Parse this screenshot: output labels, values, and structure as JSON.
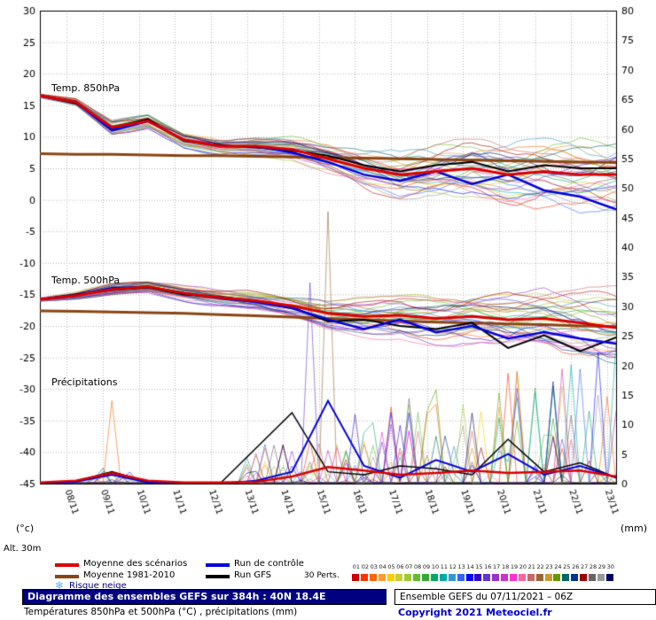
{
  "colors": {
    "mean": "#dd0000",
    "climo": "#8b4513",
    "control": "#0000dd",
    "gfs": "#000000",
    "grid": "#b8b8b8",
    "frame": "#000000",
    "navy": "#000080",
    "copyright_blue": "#0000cc",
    "snow": "#5ab4e5"
  },
  "chart_data": {
    "type": "line",
    "title": "Diagramme des ensembles GEFS sur 384h : 40N 18.4E",
    "panel_labels": {
      "t850": "Temp. 850hPa",
      "t500": "Temp. 500hPa",
      "precip": "Précipitations"
    },
    "x": {
      "days": 16,
      "first_tick_day": 0.75,
      "tick_labels": [
        "08/11",
        "09/11",
        "10/11",
        "11/11",
        "12/11",
        "13/11",
        "14/11",
        "15/11",
        "16/11",
        "17/11",
        "18/11",
        "19/11",
        "20/11",
        "21/11",
        "22/11",
        "23/11"
      ]
    },
    "y_left": {
      "label": "(°c)",
      "min": -45,
      "max": 30,
      "step": 5
    },
    "y_right": {
      "label": "(mm)",
      "min": 0,
      "max": 80,
      "step": 5
    },
    "alt_label": "Alt. 30m",
    "series": {
      "t850": {
        "mean": [
          16.5,
          15.5,
          11.5,
          12.5,
          9.5,
          8.5,
          8.5,
          8.0,
          6.5,
          5.0,
          4.0,
          4.5,
          5.0,
          4.0,
          4.5,
          4.0,
          4.0
        ],
        "climo": [
          7.3,
          7.2,
          7.2,
          7.1,
          7.0,
          7.0,
          6.9,
          6.8,
          6.7,
          6.6,
          6.5,
          6.4,
          6.3,
          6.2,
          6.1,
          6.0,
          5.9
        ],
        "control": [
          16.5,
          15.5,
          11.0,
          12.5,
          9.5,
          8.5,
          8.5,
          7.5,
          6.0,
          4.0,
          3.0,
          4.5,
          2.5,
          4.0,
          1.5,
          0.5,
          -1.5
        ],
        "gfs": [
          16.5,
          15.3,
          11.5,
          12.8,
          9.3,
          8.7,
          8.3,
          7.8,
          7.0,
          5.5,
          4.5,
          5.5,
          6.0,
          4.5,
          5.5,
          5.0,
          5.0
        ]
      },
      "t500": {
        "mean": [
          -15.8,
          -15.2,
          -14.2,
          -13.8,
          -14.8,
          -15.5,
          -16.0,
          -16.8,
          -18.0,
          -18.5,
          -18.3,
          -18.8,
          -18.5,
          -19.0,
          -18.8,
          -19.5,
          -20.3
        ],
        "climo": [
          -17.6,
          -17.7,
          -17.8,
          -17.9,
          -18.0,
          -18.2,
          -18.4,
          -18.6,
          -18.8,
          -19.0,
          -19.2,
          -19.4,
          -19.5,
          -19.7,
          -19.8,
          -20.0,
          -20.1
        ],
        "control": [
          -15.8,
          -15.2,
          -14.0,
          -13.8,
          -14.8,
          -15.6,
          -16.2,
          -17.2,
          -19.0,
          -20.5,
          -19.0,
          -21.0,
          -20.0,
          -22.0,
          -21.0,
          -22.0,
          -22.8
        ],
        "gfs": [
          -15.8,
          -15.0,
          -14.3,
          -13.9,
          -15.0,
          -15.4,
          -16.0,
          -17.0,
          -19.3,
          -19.0,
          -20.0,
          -20.5,
          -19.5,
          -23.5,
          -21.5,
          -24.0,
          -21.8
        ]
      },
      "precip": {
        "mean": [
          0.2,
          0.5,
          1.8,
          0.5,
          0.2,
          0.2,
          0.3,
          1.2,
          2.8,
          2.2,
          1.5,
          1.8,
          2.2,
          1.8,
          2.0,
          2.2,
          1.2
        ],
        "control": [
          0,
          0.3,
          1.5,
          0.2,
          0,
          0,
          0.5,
          2.0,
          14.0,
          3.0,
          1.0,
          4.0,
          2.0,
          5.0,
          1.5,
          3.0,
          1.0
        ],
        "gfs": [
          0,
          0.4,
          2.0,
          0.3,
          0,
          0,
          6.0,
          12.0,
          2.0,
          1.5,
          3.0,
          2.5,
          1.5,
          7.5,
          2.0,
          3.5,
          1.0
        ]
      }
    },
    "ensemble": {
      "count": 30,
      "seed": 7,
      "spread_t850": [
        0.3,
        0.6,
        1.2,
        1.2,
        1.3,
        1.4,
        1.5,
        1.8,
        2.5,
        3.2,
        3.8,
        4.2,
        4.6,
        5.0,
        5.4,
        5.8,
        6.0
      ],
      "spread_t500": [
        0.3,
        0.6,
        1.0,
        1.0,
        1.2,
        1.3,
        1.5,
        2.0,
        2.5,
        3.0,
        3.4,
        3.8,
        4.2,
        4.5,
        4.8,
        5.0,
        5.2
      ],
      "featured_spikes": [
        {
          "member": 2,
          "day": 2.0,
          "mm": 14
        },
        {
          "member": 15,
          "day": 7.5,
          "mm": 34
        },
        {
          "member": 21,
          "day": 8.0,
          "mm": 46
        }
      ],
      "colors": [
        "#cc0000",
        "#ff3300",
        "#ff6600",
        "#ff9933",
        "#ffcc00",
        "#cccc33",
        "#99cc33",
        "#66bb33",
        "#33aa33",
        "#00aa66",
        "#00aaaa",
        "#3399cc",
        "#3366ff",
        "#0000ff",
        "#3300cc",
        "#6633cc",
        "#9933cc",
        "#cc33cc",
        "#ff33cc",
        "#ff6699",
        "#cc6666",
        "#996633",
        "#cc9933",
        "#669900",
        "#006666",
        "#003399",
        "#990000",
        "#666666",
        "#999999",
        "#000066"
      ]
    }
  },
  "legend": {
    "mean": "Moyenne des scénarios",
    "climo": "Moyenne 1981-2010",
    "snow": "Risque neige",
    "snow_icon": "❄",
    "control": "Run de contrôle",
    "gfs": "Run GFS",
    "perts": "30 Perts.",
    "member_numbers": [
      "01",
      "02",
      "03",
      "04",
      "05",
      "06",
      "07",
      "08",
      "09",
      "10",
      "11",
      "12",
      "13",
      "14",
      "15",
      "16",
      "17",
      "18",
      "19",
      "20",
      "21",
      "22",
      "23",
      "24",
      "25",
      "26",
      "27",
      "28",
      "29",
      "30"
    ]
  },
  "footer": {
    "title": "Diagramme des ensembles GEFS sur 384h : 40N 18.4E",
    "subtitle": "Températures 850hPa et 500hPa (°C) , précipitations (mm)",
    "run_info": "Ensemble GEFS du 07/11/2021 – 06Z",
    "copyright": "Copyright 2021 Meteociel.fr"
  }
}
